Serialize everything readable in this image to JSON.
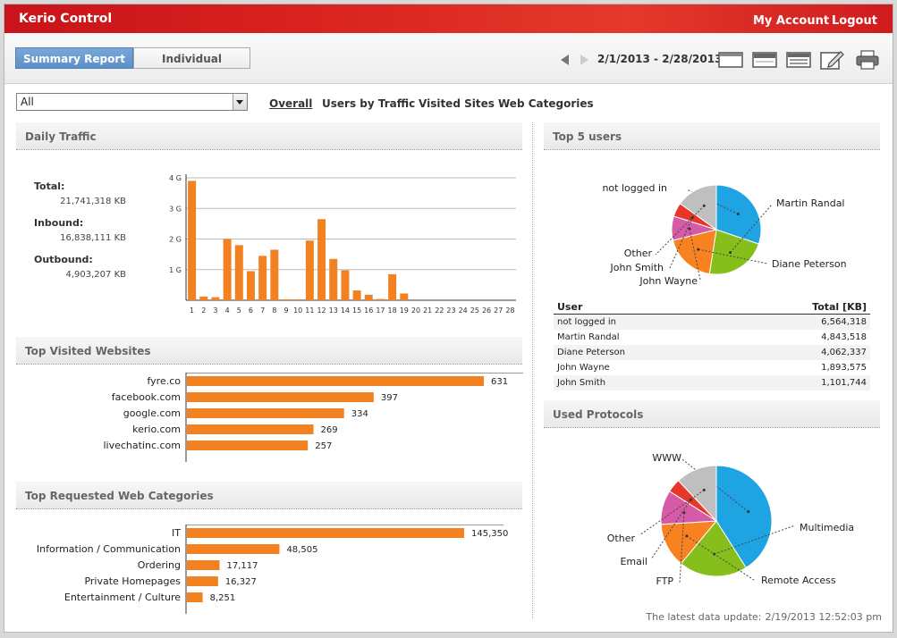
{
  "app": {
    "title": "Kerio Control",
    "my_account": "My Account",
    "logout": "Logout"
  },
  "toolbar": {
    "tabs": [
      "Summary Report",
      "Individual"
    ],
    "active_tab": "Summary Report",
    "date_range": "2/1/2013 - 2/28/2013",
    "icons": [
      "prev-arrow-icon",
      "next-arrow-icon",
      "layout-single-icon",
      "layout-header-icon",
      "layout-list-icon",
      "edit-icon",
      "print-icon"
    ]
  },
  "filter": {
    "selected": "All",
    "subtabs": [
      "Overall",
      "Users by Traffic",
      "Visited Sites",
      "Web Categories"
    ],
    "active_subtab": "Overall"
  },
  "daily_traffic": {
    "title": "Daily Traffic",
    "total_label": "Total:",
    "total_value": "21,741,318 KB",
    "inbound_label": "Inbound:",
    "inbound_value": "16,838,111 KB",
    "outbound_label": "Outbound:",
    "outbound_value": "4,903,207 KB"
  },
  "top_sites": {
    "title": "Top Visited Websites"
  },
  "top_categories": {
    "title": "Top Requested Web Categories"
  },
  "top_users": {
    "title": "Top 5 users",
    "table_headers": [
      "User",
      "Total [KB]"
    ],
    "rows": [
      [
        "not logged in",
        "6,564,318"
      ],
      [
        "Martin Randal",
        "4,843,518"
      ],
      [
        "Diane Peterson",
        "4,062,337"
      ],
      [
        "John Wayne",
        "1,893,575"
      ],
      [
        "John Smith",
        "1,101,744"
      ]
    ]
  },
  "protocols": {
    "title": "Used Protocols"
  },
  "footer": {
    "last_update_label": "The latest data update:",
    "last_update_value": "2/19/2013 12:52:03 pm"
  },
  "colors": {
    "brand_red": "#d9231f",
    "bar_orange": "#f28221",
    "tab_active_blue": "#6b9bd1",
    "pie_blue": "#1ea3e3",
    "pie_green": "#86bf1c",
    "pie_orange": "#f7821f",
    "pie_pink": "#d65aa6",
    "pie_red": "#e8372a",
    "pie_gray": "#bfbfbf"
  },
  "chart_data": [
    {
      "type": "bar",
      "id": "daily-traffic",
      "categories": [
        "1",
        "2",
        "3",
        "4",
        "5",
        "6",
        "7",
        "8",
        "9",
        "10",
        "11",
        "12",
        "13",
        "14",
        "15",
        "16",
        "17",
        "18",
        "19",
        "20",
        "21",
        "22",
        "23",
        "24",
        "25",
        "26",
        "27",
        "28"
      ],
      "values": [
        3.9,
        0.12,
        0.1,
        2.0,
        1.8,
        0.95,
        1.45,
        1.65,
        0.03,
        0.03,
        1.95,
        2.65,
        1.35,
        0.98,
        0.32,
        0.18,
        0.04,
        0.85,
        0.22,
        0,
        0,
        0,
        0,
        0,
        0,
        0,
        0,
        0
      ],
      "ylim": [
        0,
        4
      ],
      "yticks": [
        1,
        2,
        3,
        4
      ],
      "ytick_labels": [
        "1 G",
        "2 G",
        "3 G",
        "4 G"
      ],
      "grid": true
    },
    {
      "type": "bar",
      "id": "top-sites",
      "orientation": "horizontal",
      "categories": [
        "fyre.co",
        "facebook.com",
        "google.com",
        "kerio.com",
        "livechatinc.com"
      ],
      "values": [
        631,
        397,
        334,
        269,
        257
      ],
      "value_labels": [
        "631",
        "397",
        "334",
        "269",
        "257"
      ]
    },
    {
      "type": "bar",
      "id": "top-categories",
      "orientation": "horizontal",
      "categories": [
        "IT",
        "Information / Communication",
        "Ordering",
        "Private Homepages",
        "Entertainment / Culture"
      ],
      "values": [
        145350,
        48505,
        17117,
        16327,
        8251
      ],
      "value_labels": [
        "145,350",
        "48,505",
        "17,117",
        "16,327",
        "8,251"
      ]
    },
    {
      "type": "pie",
      "id": "top-users",
      "labels": [
        "not logged in",
        "Martin Randal",
        "Diane Peterson",
        "John Wayne",
        "John Smith",
        "Other"
      ],
      "values": [
        6564318,
        4843518,
        4062337,
        1893575,
        1101744,
        3275826
      ],
      "colors": [
        "#1ea3e3",
        "#86bf1c",
        "#f7821f",
        "#d65aa6",
        "#e8372a",
        "#bfbfbf"
      ]
    },
    {
      "type": "pie",
      "id": "used-protocols",
      "labels": [
        "WWW",
        "Multimedia",
        "Remote Access",
        "FTP",
        "Email",
        "Other"
      ],
      "values": [
        41,
        20,
        13,
        10,
        4,
        12
      ],
      "colors": [
        "#1ea3e3",
        "#86bf1c",
        "#f7821f",
        "#d65aa6",
        "#e8372a",
        "#bfbfbf"
      ]
    }
  ]
}
